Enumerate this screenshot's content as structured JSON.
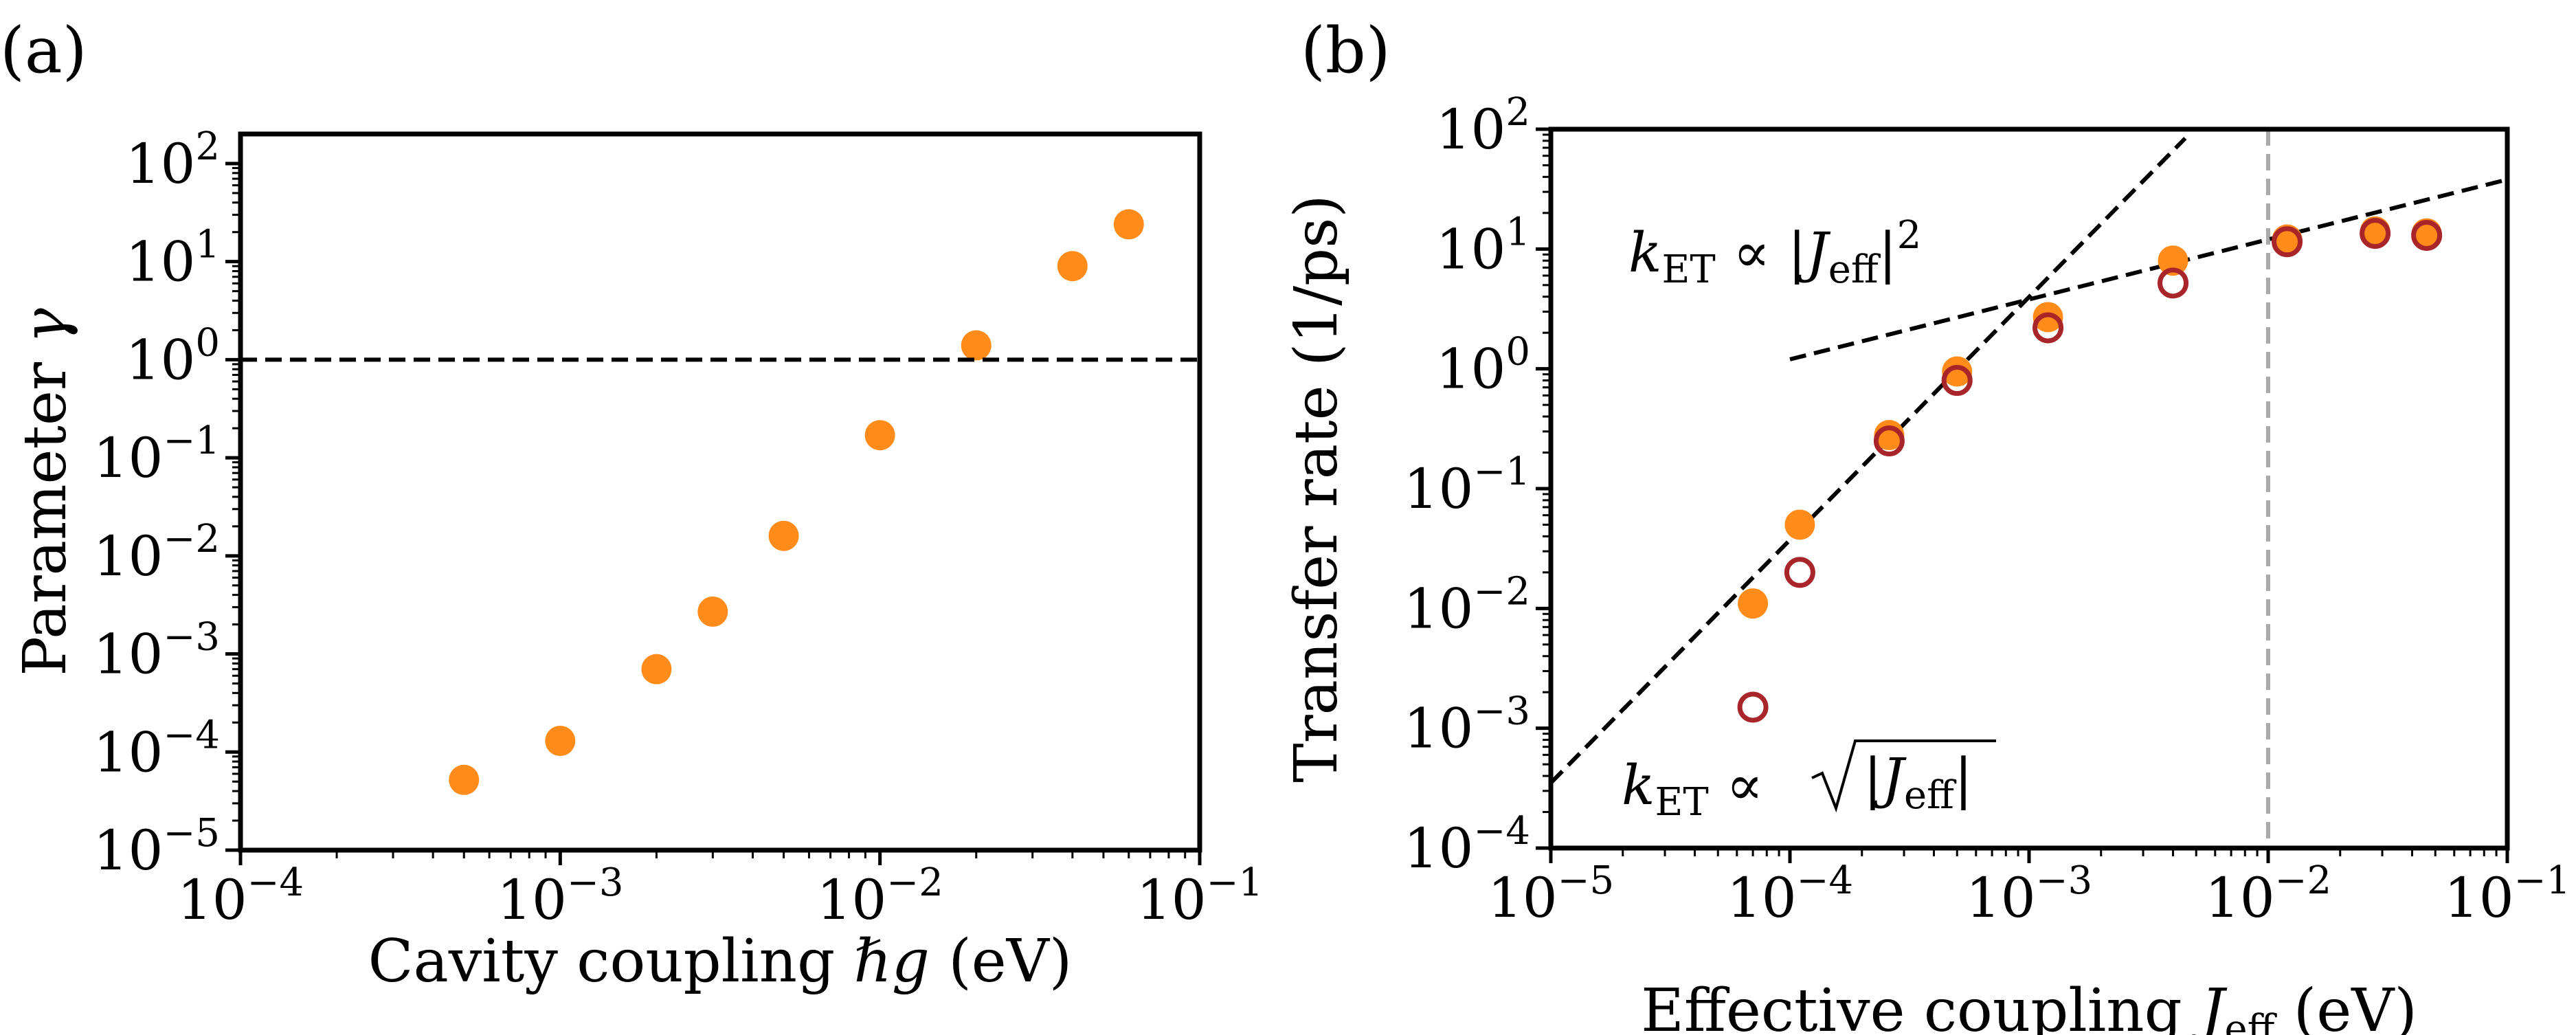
{
  "chart_data": [
    {
      "panel_label": "(a)",
      "type": "scatter",
      "xlabel_text": "Cavity coupling ",
      "xlabel_symbol": "ℏg",
      "xlabel_unit": " (eV)",
      "ylabel_text": "Parameter ",
      "ylabel_symbol": "γ",
      "x_scale": "log",
      "y_scale": "log",
      "xlim": [
        0.0001,
        0.1
      ],
      "ylim": [
        1e-05,
        200
      ],
      "x_ticks": [
        {
          "base": "10",
          "exp": "−4",
          "value": -4
        },
        {
          "base": "10",
          "exp": "−3",
          "value": -3
        },
        {
          "base": "10",
          "exp": "−2",
          "value": -2
        },
        {
          "base": "10",
          "exp": "−1",
          "value": -1
        }
      ],
      "y_ticks": [
        {
          "base": "10",
          "exp": "−5",
          "value": -5
        },
        {
          "base": "10",
          "exp": "−4",
          "value": -4
        },
        {
          "base": "10",
          "exp": "−3",
          "value": -3
        },
        {
          "base": "10",
          "exp": "−2",
          "value": -2
        },
        {
          "base": "10",
          "exp": "−1",
          "value": -1
        },
        {
          "base": "10",
          "exp": "0",
          "value": 0
        },
        {
          "base": "10",
          "exp": "1",
          "value": 1
        },
        {
          "base": "10",
          "exp": "2",
          "value": 2
        }
      ],
      "series": [
        {
          "name": "gamma",
          "marker": "filled-circle",
          "color": "#ff8c1a",
          "x": [
            0.0005,
            0.001,
            0.002,
            0.003,
            0.005,
            0.01,
            0.02,
            0.04,
            0.06
          ],
          "y": [
            5.2e-05,
            0.00013,
            0.0007,
            0.0027,
            0.016,
            0.17,
            1.4,
            9.0,
            24.0
          ]
        }
      ],
      "hlines": [
        {
          "y": 1.0,
          "style": "dashed",
          "color": "#000000"
        }
      ],
      "grid": false
    },
    {
      "panel_label": "(b)",
      "type": "scatter",
      "xlabel_text": "Effective coupling ",
      "xlabel_symbol": "J",
      "xlabel_sub": "eff",
      "xlabel_unit": " (eV)",
      "ylabel": "Transfer rate (1/ps)",
      "x_scale": "log",
      "y_scale": "log",
      "xlim": [
        1e-05,
        0.1
      ],
      "ylim": [
        0.0001,
        100
      ],
      "x_ticks": [
        {
          "base": "10",
          "exp": "−5",
          "value": -5
        },
        {
          "base": "10",
          "exp": "−4",
          "value": -4
        },
        {
          "base": "10",
          "exp": "−3",
          "value": -3
        },
        {
          "base": "10",
          "exp": "−2",
          "value": -2
        },
        {
          "base": "10",
          "exp": "−1",
          "value": -1
        }
      ],
      "y_ticks": [
        {
          "base": "10",
          "exp": "−4",
          "value": -4
        },
        {
          "base": "10",
          "exp": "−3",
          "value": -3
        },
        {
          "base": "10",
          "exp": "−2",
          "value": -2
        },
        {
          "base": "10",
          "exp": "−1",
          "value": -1
        },
        {
          "base": "10",
          "exp": "0",
          "value": 0
        },
        {
          "base": "10",
          "exp": "1",
          "value": 1
        },
        {
          "base": "10",
          "exp": "2",
          "value": 2
        }
      ],
      "series": [
        {
          "name": "filled",
          "marker": "filled-circle",
          "color": "#ff8c1a",
          "x": [
            7e-05,
            0.00011,
            0.00026,
            0.0005,
            0.0012,
            0.004,
            0.012,
            0.028,
            0.046
          ],
          "y": [
            0.011,
            0.05,
            0.28,
            0.95,
            2.7,
            8.0,
            12.0,
            14.0,
            13.5
          ]
        },
        {
          "name": "open",
          "marker": "open-circle",
          "color": "#a8262a",
          "x": [
            7e-05,
            0.00011,
            0.00026,
            0.0005,
            0.0012,
            0.004,
            0.012,
            0.028,
            0.046
          ],
          "y": [
            0.0015,
            0.02,
            0.25,
            0.8,
            2.2,
            5.2,
            11.5,
            13.5,
            13.0
          ]
        }
      ],
      "fit_lines": [
        {
          "name": "quadratic",
          "style": "dashed",
          "color": "#000000",
          "x": [
            1e-05,
            0.0045
          ],
          "y": [
            0.00035,
            84.0
          ]
        },
        {
          "name": "sqrt",
          "style": "dashed",
          "color": "#000000",
          "x": [
            0.0001,
            0.1
          ],
          "y": [
            1.2,
            38.0
          ]
        }
      ],
      "vlines": [
        {
          "x": 0.01,
          "style": "dashed",
          "color": "#aaaaaa"
        }
      ],
      "annotations": [
        {
          "id": "quad",
          "lhs": "k",
          "lhs_sub": "ET",
          "op": " ∝ |",
          "var": "J",
          "var_sub": "eff",
          "close": "|",
          "power": "2"
        },
        {
          "id": "sqrt",
          "lhs": "k",
          "lhs_sub": "ET",
          "op": " ∝ ",
          "inner": "|",
          "var": "J",
          "var_sub": "eff",
          "close": "|"
        }
      ],
      "grid": false
    }
  ]
}
